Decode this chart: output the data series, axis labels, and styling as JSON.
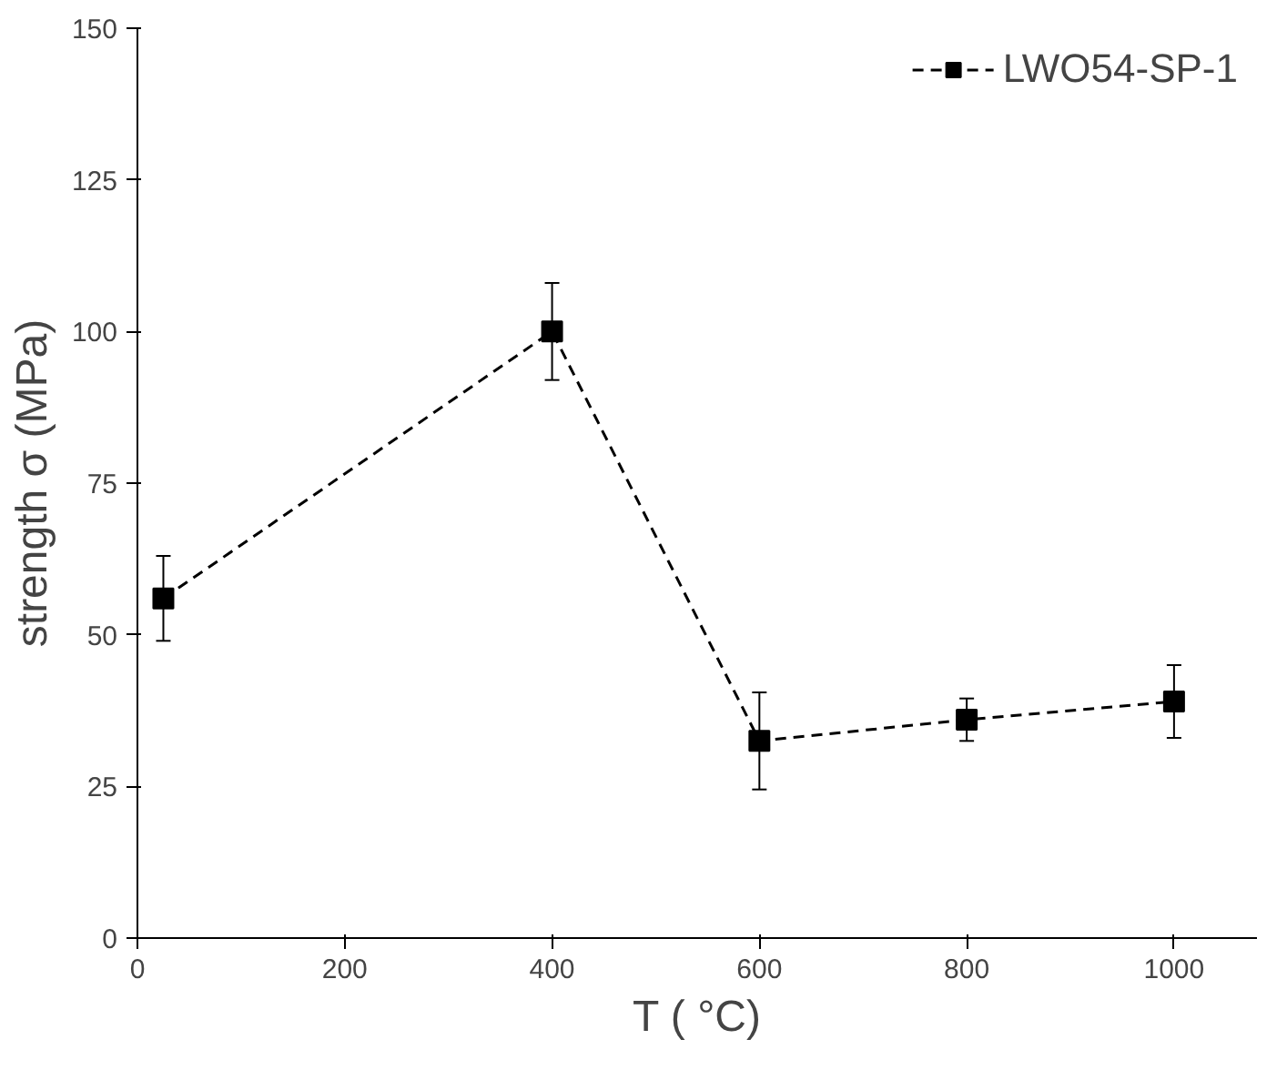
{
  "chart_data": {
    "type": "line",
    "xlabel": "T ( °C)",
    "ylabel": "strength σ (MPa)",
    "x": [
      25,
      400,
      600,
      800,
      1000
    ],
    "series": [
      {
        "name": "LWO54-SP-1",
        "color": "#000000",
        "values": [
          56,
          100,
          32.5,
          36,
          39
        ],
        "errors": [
          [
            49,
            63
          ],
          [
            92,
            108
          ],
          [
            24.5,
            40.5
          ],
          [
            32.5,
            39.5
          ],
          [
            33,
            45
          ]
        ]
      }
    ],
    "xlim": [
      0,
      1080
    ],
    "ylim": [
      0,
      150
    ],
    "xticks": [
      0,
      200,
      400,
      600,
      800,
      1000
    ],
    "yticks": [
      0,
      25,
      50,
      75,
      100,
      125,
      150
    ],
    "grid": false,
    "legend": "top right",
    "marker": "square",
    "line_style": "dashed"
  }
}
